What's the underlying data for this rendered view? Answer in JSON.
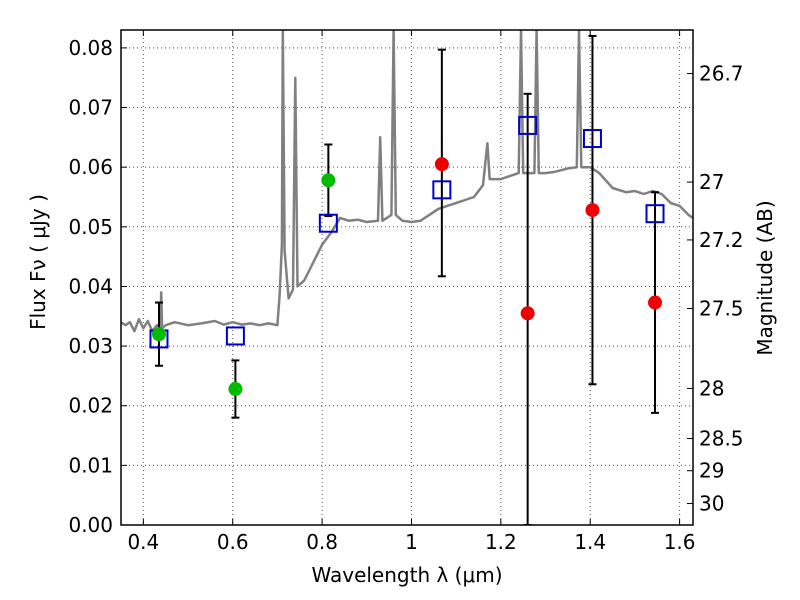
{
  "chart_data": {
    "type": "scatter",
    "xlabel": "Wavelength  λ (μm)",
    "ylabel": "Flux  Fν  ( μJy )",
    "y2label": "Magnitude (AB)",
    "xlim": [
      0.35,
      1.63
    ],
    "ylim": [
      0.0,
      0.083
    ],
    "grid": true,
    "x_ticks": [
      0.4,
      0.6,
      0.8,
      1.0,
      1.2,
      1.4,
      1.6
    ],
    "x_tick_labels": [
      "0.4",
      "0.6",
      "0.8",
      "1",
      "1.2",
      "1.4",
      "1.6"
    ],
    "y_ticks": [
      0.0,
      0.01,
      0.02,
      0.03,
      0.04,
      0.05,
      0.06,
      0.07,
      0.08
    ],
    "y_tick_labels": [
      "0.00",
      "0.01",
      "0.02",
      "0.03",
      "0.04",
      "0.05",
      "0.06",
      "0.07",
      "0.08"
    ],
    "y2_ticks": [
      {
        "label": "26.7",
        "flux": 0.0757
      },
      {
        "label": "27",
        "flux": 0.0575
      },
      {
        "label": "27.2",
        "flux": 0.0478
      },
      {
        "label": "27.5",
        "flux": 0.0363
      },
      {
        "label": "28",
        "flux": 0.0229
      },
      {
        "label": "28.5",
        "flux": 0.0145
      },
      {
        "label": "29",
        "flux": 0.0091
      },
      {
        "label": "30",
        "flux": 0.0036
      }
    ],
    "series": [
      {
        "kind": "green-points",
        "color": "#00bb00",
        "points": [
          {
            "x": 0.435,
            "y": 0.032,
            "err": 0.0053
          },
          {
            "x": 0.606,
            "y": 0.0228,
            "err": 0.0048
          },
          {
            "x": 0.814,
            "y": 0.0578,
            "err": 0.006
          }
        ]
      },
      {
        "kind": "red-points",
        "color": "#ee0000",
        "points": [
          {
            "x": 1.068,
            "y": 0.0605,
            "err_low": 0.0188,
            "err_high": 0.0192
          },
          {
            "x": 1.26,
            "y": 0.0355,
            "err_low": 0.0355,
            "err_high": 0.0368
          },
          {
            "x": 1.405,
            "y": 0.0528,
            "err_low": 0.0292,
            "err_high": 0.0292
          },
          {
            "x": 1.545,
            "y": 0.0373,
            "err_low": 0.0185,
            "err_high": 0.0185
          }
        ]
      },
      {
        "kind": "blue-squares",
        "color": "#0000cc",
        "points": [
          {
            "x": 0.435,
            "y": 0.0312
          },
          {
            "x": 0.606,
            "y": 0.0317
          },
          {
            "x": 0.814,
            "y": 0.0506
          },
          {
            "x": 1.068,
            "y": 0.0562
          },
          {
            "x": 1.26,
            "y": 0.067
          },
          {
            "x": 1.405,
            "y": 0.0648
          },
          {
            "x": 1.545,
            "y": 0.0522
          }
        ]
      },
      {
        "kind": "model-spectrum",
        "color": "#808080",
        "line": [
          [
            0.35,
            0.034
          ],
          [
            0.36,
            0.0335
          ],
          [
            0.37,
            0.034
          ],
          [
            0.38,
            0.0325
          ],
          [
            0.39,
            0.0345
          ],
          [
            0.4,
            0.033
          ],
          [
            0.41,
            0.0342
          ],
          [
            0.42,
            0.0325
          ],
          [
            0.43,
            0.0335
          ],
          [
            0.438,
            0.033
          ],
          [
            0.44,
            0.039
          ],
          [
            0.442,
            0.033
          ],
          [
            0.45,
            0.0335
          ],
          [
            0.47,
            0.034
          ],
          [
            0.5,
            0.0335
          ],
          [
            0.53,
            0.0338
          ],
          [
            0.56,
            0.0342
          ],
          [
            0.58,
            0.0336
          ],
          [
            0.6,
            0.034
          ],
          [
            0.62,
            0.0336
          ],
          [
            0.64,
            0.0338
          ],
          [
            0.66,
            0.0335
          ],
          [
            0.68,
            0.0338
          ],
          [
            0.7,
            0.0335
          ],
          [
            0.705,
            0.0385
          ],
          [
            0.71,
            0.047
          ],
          [
            0.712,
            0.083
          ],
          [
            0.716,
            0.046
          ],
          [
            0.725,
            0.038
          ],
          [
            0.735,
            0.0395
          ],
          [
            0.74,
            0.075
          ],
          [
            0.745,
            0.04
          ],
          [
            0.76,
            0.041
          ],
          [
            0.78,
            0.044
          ],
          [
            0.8,
            0.047
          ],
          [
            0.82,
            0.049
          ],
          [
            0.84,
            0.0515
          ],
          [
            0.86,
            0.051
          ],
          [
            0.88,
            0.0512
          ],
          [
            0.9,
            0.0508
          ],
          [
            0.925,
            0.051
          ],
          [
            0.93,
            0.065
          ],
          [
            0.935,
            0.051
          ],
          [
            0.955,
            0.052
          ],
          [
            0.96,
            0.083
          ],
          [
            0.965,
            0.052
          ],
          [
            0.98,
            0.051
          ],
          [
            1.0,
            0.0508
          ],
          [
            1.02,
            0.051
          ],
          [
            1.04,
            0.052
          ],
          [
            1.06,
            0.053
          ],
          [
            1.08,
            0.0535
          ],
          [
            1.1,
            0.054
          ],
          [
            1.12,
            0.0545
          ],
          [
            1.14,
            0.055
          ],
          [
            1.16,
            0.057
          ],
          [
            1.17,
            0.064
          ],
          [
            1.175,
            0.058
          ],
          [
            1.2,
            0.058
          ],
          [
            1.22,
            0.0585
          ],
          [
            1.24,
            0.059
          ],
          [
            1.245,
            0.083
          ],
          [
            1.25,
            0.059
          ],
          [
            1.26,
            0.059
          ],
          [
            1.275,
            0.059
          ],
          [
            1.28,
            0.083
          ],
          [
            1.285,
            0.059
          ],
          [
            1.3,
            0.059
          ],
          [
            1.32,
            0.0592
          ],
          [
            1.35,
            0.0598
          ],
          [
            1.37,
            0.06
          ],
          [
            1.375,
            0.083
          ],
          [
            1.38,
            0.06
          ],
          [
            1.4,
            0.06
          ],
          [
            1.42,
            0.059
          ],
          [
            1.45,
            0.0565
          ],
          [
            1.48,
            0.0558
          ],
          [
            1.5,
            0.056
          ],
          [
            1.52,
            0.0555
          ],
          [
            1.54,
            0.056
          ],
          [
            1.56,
            0.0555
          ],
          [
            1.58,
            0.054
          ],
          [
            1.6,
            0.0535
          ],
          [
            1.62,
            0.052
          ],
          [
            1.63,
            0.0515
          ]
        ]
      }
    ]
  }
}
